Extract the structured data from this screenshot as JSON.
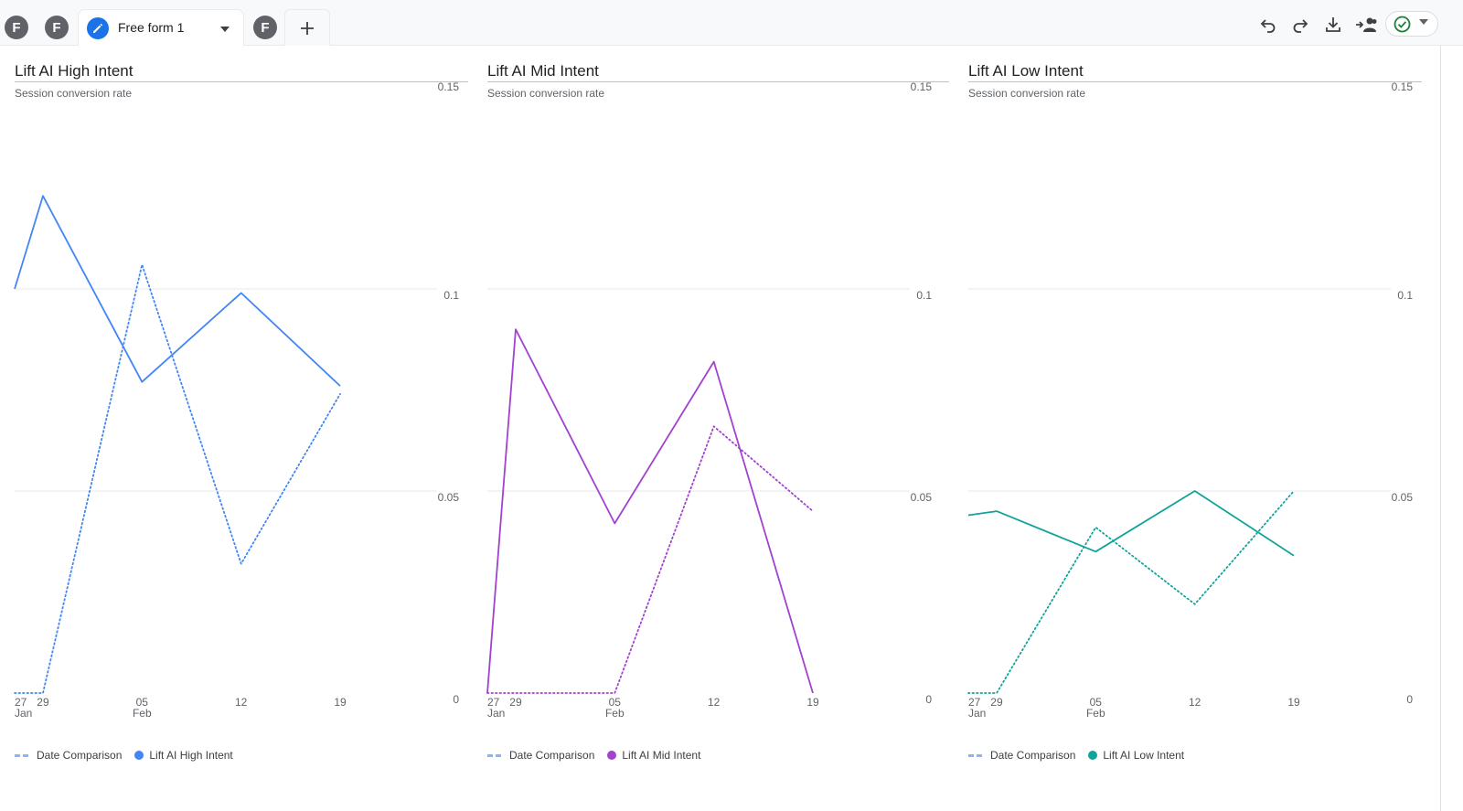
{
  "tabs": {
    "items": [
      {
        "avatar": "F"
      },
      {
        "avatar": "F"
      },
      {
        "label": "Free form 1",
        "active": true,
        "icon": "pencil-icon"
      },
      {
        "avatar": "F"
      }
    ],
    "add_icon": "plus-icon"
  },
  "toolbar": {
    "icons": [
      "undo-icon",
      "redo-icon",
      "download-icon",
      "share-users-icon",
      "check-circle-icon",
      "caret-down-icon"
    ],
    "status_color": "#188038"
  },
  "charts": {
    "metric": "Session conversion rate",
    "legend_comparison": "Date Comparison",
    "y_ticks": [
      "0.15",
      "0.1",
      "0.05",
      "0"
    ],
    "x_ticks": [
      {
        "day": "27",
        "month": "Jan"
      },
      {
        "day": "29",
        "month": ""
      },
      {
        "day": "05",
        "month": "Feb"
      },
      {
        "day": "12",
        "month": ""
      },
      {
        "day": "19",
        "month": ""
      }
    ]
  },
  "chart_data": [
    {
      "type": "line",
      "title": "Lift AI High Intent",
      "subtitle": "Session conversion rate",
      "ylim": [
        0,
        0.15
      ],
      "yticks": [
        0,
        0.05,
        0.1,
        0.15
      ],
      "x": [
        "2024-01-27",
        "2024-01-29",
        "2024-02-05",
        "2024-02-12",
        "2024-02-19"
      ],
      "grid": true,
      "legend": "bottom-left",
      "color": "#4285f4",
      "series": [
        {
          "name": "Lift AI High Intent",
          "style": "solid",
          "values": [
            0.1,
            0.123,
            0.077,
            0.099,
            0.076
          ]
        },
        {
          "name": "Date Comparison",
          "style": "dotted",
          "values": [
            0,
            0,
            0.106,
            0.032,
            0.074
          ]
        }
      ]
    },
    {
      "type": "line",
      "title": "Lift AI Mid Intent",
      "subtitle": "Session conversion rate",
      "ylim": [
        0,
        0.15
      ],
      "yticks": [
        0,
        0.05,
        0.1,
        0.15
      ],
      "x": [
        "2024-01-27",
        "2024-01-29",
        "2024-02-05",
        "2024-02-12",
        "2024-02-19"
      ],
      "grid": true,
      "legend": "bottom-left",
      "color": "#a142d0",
      "series": [
        {
          "name": "Lift AI Mid Intent",
          "style": "solid",
          "values": [
            0,
            0.09,
            0.042,
            0.082,
            0
          ]
        },
        {
          "name": "Date Comparison",
          "style": "dotted",
          "values": [
            0,
            0,
            0,
            0.066,
            0.045
          ]
        }
      ]
    },
    {
      "type": "line",
      "title": "Lift AI Low Intent",
      "subtitle": "Session conversion rate",
      "ylim": [
        0,
        0.15
      ],
      "yticks": [
        0,
        0.05,
        0.1,
        0.15
      ],
      "x": [
        "2024-01-27",
        "2024-01-29",
        "2024-02-05",
        "2024-02-12",
        "2024-02-19"
      ],
      "grid": true,
      "legend": "bottom-left",
      "color": "#12a39a",
      "series": [
        {
          "name": "Lift AI Low Intent",
          "style": "solid",
          "values": [
            0.044,
            0.045,
            0.035,
            0.05,
            0.034
          ]
        },
        {
          "name": "Date Comparison",
          "style": "dotted",
          "values": [
            0,
            0,
            0.041,
            0.022,
            0.05
          ]
        }
      ]
    }
  ]
}
